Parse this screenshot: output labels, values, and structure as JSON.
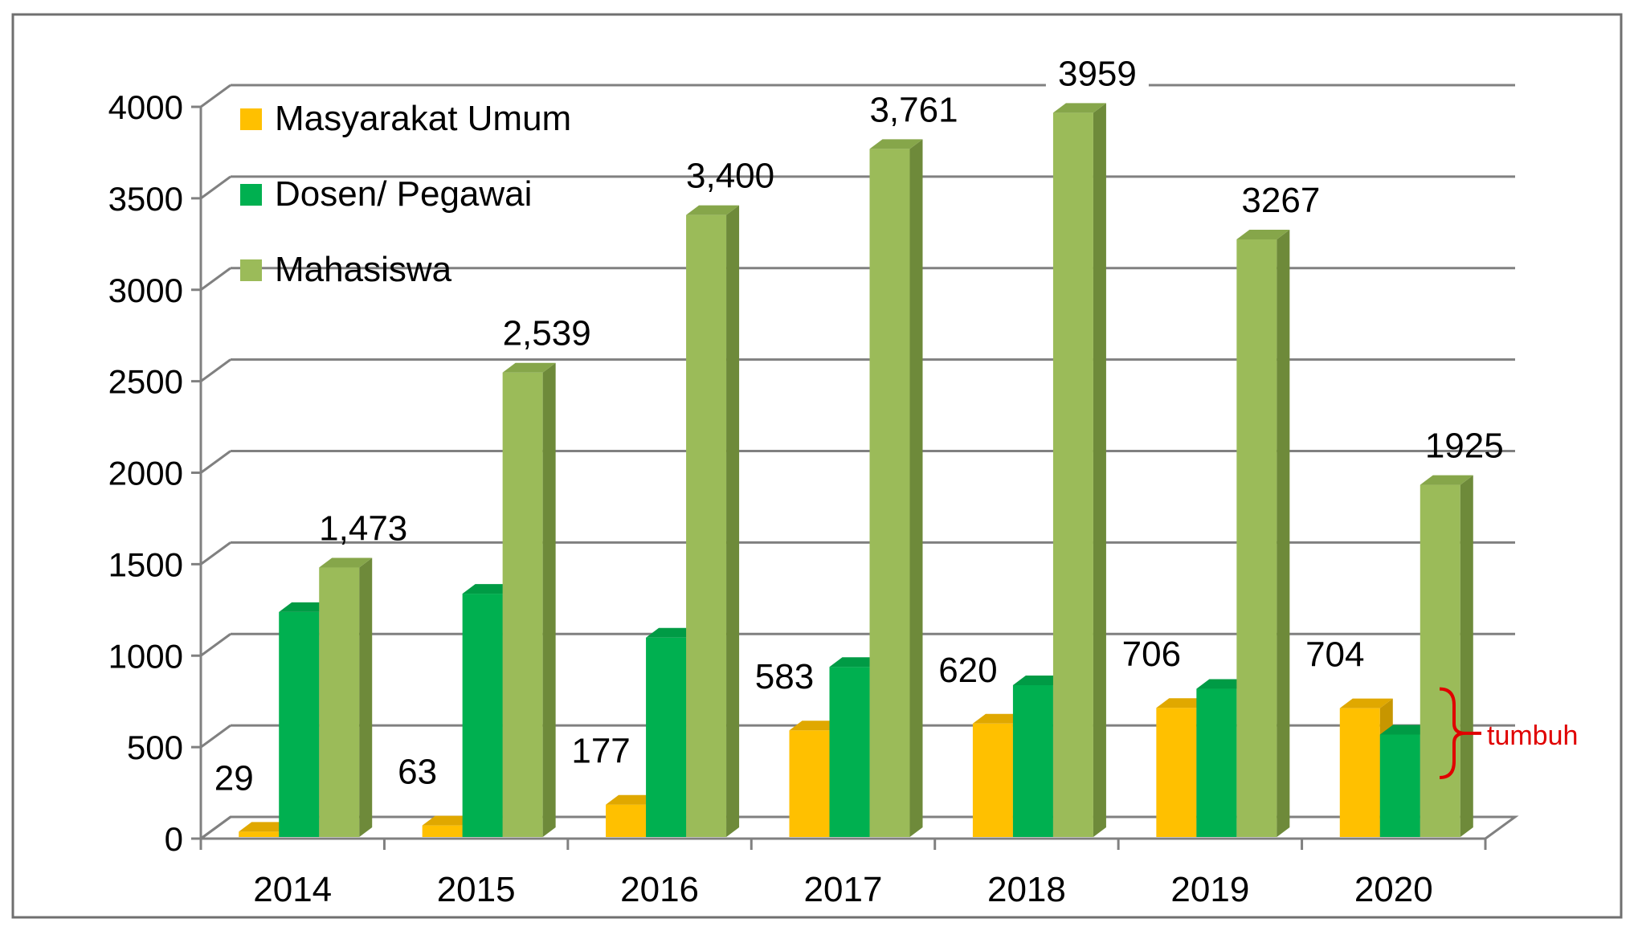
{
  "colors": {
    "series": [
      "#FFC000",
      "#00B050",
      "#9BBB59"
    ],
    "series_dark": [
      "#C79600",
      "#007A3A",
      "#6E8A3A"
    ],
    "series_top": [
      "#E0A800",
      "#009B45",
      "#86A64A"
    ],
    "grid": "#808080",
    "border": "#6F6F6F",
    "axis_text": "#000000",
    "annotation": "#E00000"
  },
  "chart_data": {
    "type": "bar",
    "categories": [
      "2014",
      "2015",
      "2016",
      "2017",
      "2018",
      "2019",
      "2020"
    ],
    "series": [
      {
        "name": "Masyarakat Umum",
        "values": [
          29,
          63,
          177,
          583,
          620,
          706,
          704
        ],
        "labels": [
          "29",
          "63",
          "177",
          "583",
          "620",
          "706",
          "704"
        ]
      },
      {
        "name": "Dosen/ Pegawai",
        "values": [
          1230,
          1330,
          1090,
          930,
          830,
          810,
          560
        ],
        "labels": [
          "",
          "",
          "",
          "",
          "",
          "",
          ""
        ]
      },
      {
        "name": "Mahasiswa",
        "values": [
          1473,
          2539,
          3400,
          3761,
          3959,
          3267,
          1925
        ],
        "labels": [
          "1,473",
          "2,539",
          "3,400",
          "3,761",
          "3959",
          "3267",
          "1925"
        ]
      }
    ],
    "y_ticks": [
      "0",
      "500",
      "1000",
      "1500",
      "2000",
      "2500",
      "3000",
      "3500",
      "4000"
    ],
    "ylim": [
      0,
      4000
    ],
    "grid": true,
    "legend_position": "top-left",
    "annotation": {
      "text": "tumbuh",
      "category": "2020"
    }
  }
}
